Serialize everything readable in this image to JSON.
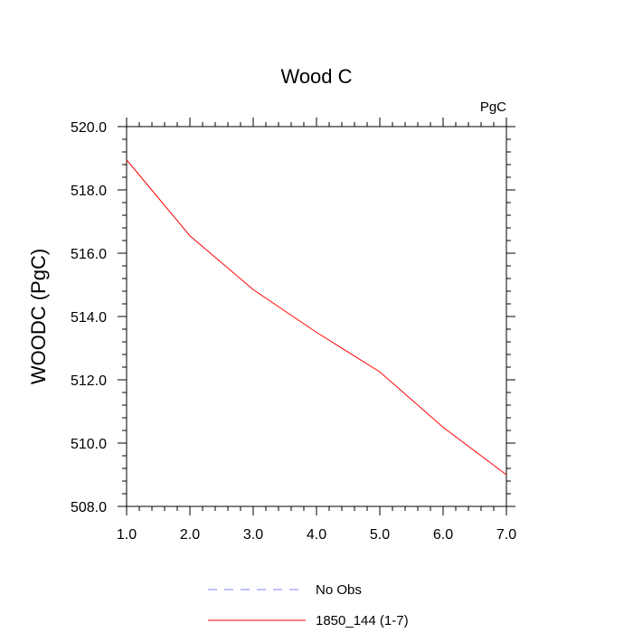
{
  "chart_data": {
    "type": "line",
    "title": "Wood C",
    "units_label": "PgC",
    "xlabel": "",
    "ylabel": "WOODC  (PgC)",
    "xlim": [
      1.0,
      7.0
    ],
    "ylim": [
      508.0,
      520.0
    ],
    "x_ticks": [
      "1.0",
      "2.0",
      "3.0",
      "4.0",
      "5.0",
      "6.0",
      "7.0"
    ],
    "y_ticks": [
      "508.0",
      "510.0",
      "512.0",
      "514.0",
      "516.0",
      "518.0",
      "520.0"
    ],
    "grid": false,
    "legend_position": "bottom",
    "series": [
      {
        "name": "No Obs",
        "color": "#8080ff",
        "dash": "dashed",
        "x": [],
        "y": []
      },
      {
        "name": "1850_144 (1-7)",
        "color": "#ff0000",
        "dash": "solid",
        "x": [
          1,
          2,
          3,
          4,
          5,
          6,
          7
        ],
        "y": [
          518.95,
          516.55,
          514.85,
          513.5,
          512.25,
          510.5,
          509.0
        ]
      }
    ]
  }
}
